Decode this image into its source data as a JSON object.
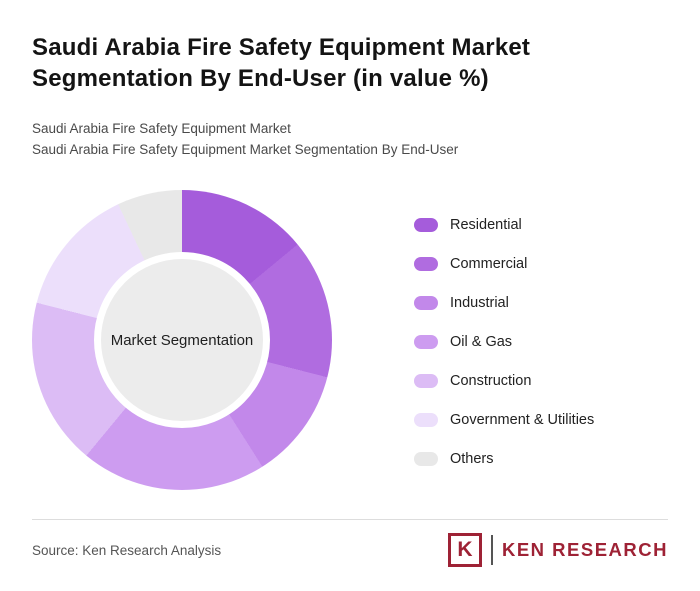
{
  "header": {
    "title_line1": "Saudi Arabia Fire Safety Equipment Market",
    "title_line2": "Segmentation By End-User (in value %)",
    "subtitle1": "Saudi Arabia Fire Safety Equipment Market",
    "subtitle2": "Saudi Arabia Fire Safety Equipment Market Segmentation By End-User"
  },
  "chart_data": {
    "type": "pie",
    "donut": true,
    "title": "Saudi Arabia Fire Safety Equipment Market Segmentation By End-User (in value %)",
    "center_label": "Market Segmentation",
    "legend_position": "right",
    "categories": [
      "Residential",
      "Commercial",
      "Industrial",
      "Oil & Gas",
      "Construction",
      "Government & Utilities",
      "Others"
    ],
    "values": [
      14,
      15,
      12,
      20,
      18,
      14,
      7
    ],
    "colors": [
      "#a55cdb",
      "#b06ce0",
      "#c288ea",
      "#cd9cf0",
      "#dcbcf5",
      "#ecdffb",
      "#e8e8e8"
    ]
  },
  "footer": {
    "source": "Source: Ken Research Analysis",
    "logo": {
      "mark": "K",
      "name": "KEN RESEARCH",
      "color": "#9e2235"
    }
  }
}
